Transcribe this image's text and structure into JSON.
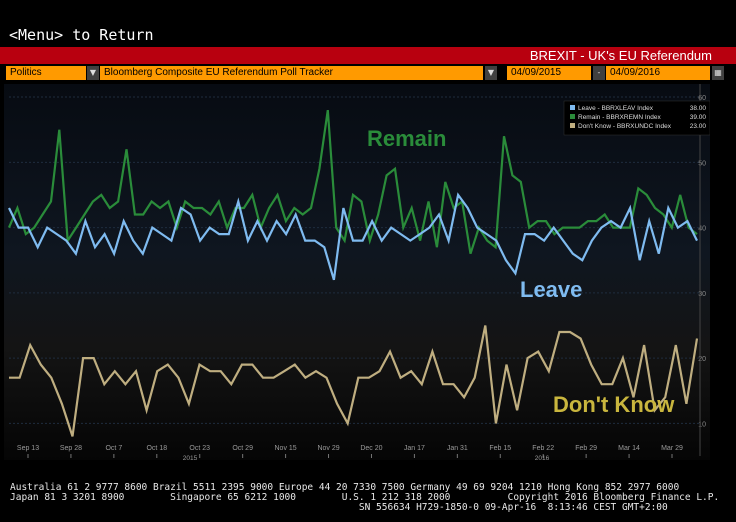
{
  "nav": {
    "back_text": "<Menu> to Return"
  },
  "window": {
    "title": "BREXIT - UK's EU Referendum"
  },
  "toolbar": {
    "category": "Politics",
    "tracker": "Bloomberg Composite EU Referendum Poll Tracker",
    "start_date": "04/09/2015",
    "end_date": "04/09/2016"
  },
  "labels": {
    "remain": "Remain",
    "leave": "Leave",
    "dont_know": "Don't Know"
  },
  "colors": {
    "remain": "#2a8c3a",
    "leave": "#7fbbf0",
    "dont_know": "#bfae80",
    "title_bar": "#b8000f",
    "field": "#ff9a00"
  },
  "chart_data": {
    "type": "line",
    "ylim": [
      5,
      62
    ],
    "y_ticks": [
      10,
      20,
      30,
      40,
      50,
      60
    ],
    "x_ticks": [
      "Sep 13",
      "Sep 28",
      "Oct 7",
      "Oct 18",
      "Oct 23",
      "Oct 29",
      "Nov 15",
      "Nov 29",
      "Dec 20",
      "Jan 17",
      "Jan 31",
      "Feb 15",
      "Feb 22",
      "Feb 29",
      "Mar 14",
      "Mar 29"
    ],
    "x_year_labels": [
      "2015",
      "2016"
    ],
    "legend": {
      "placement": "top-right",
      "entries": [
        {
          "name": "Leave - BBRXLEAV Index",
          "value": "38.00"
        },
        {
          "name": "Remain - BBRXREMN Index",
          "value": "39.00"
        },
        {
          "name": "Don't Know - BBRXUNDC Index",
          "value": "23.00"
        }
      ]
    },
    "series": [
      {
        "name": "Remain",
        "values": [
          40,
          43,
          39,
          40,
          42,
          44,
          55,
          38,
          40,
          42,
          44,
          45,
          43,
          44,
          52,
          42,
          42,
          44,
          43,
          44,
          40,
          44,
          43,
          43,
          42,
          44,
          40,
          43,
          43,
          45,
          40,
          43,
          45,
          41,
          43,
          42,
          43,
          49,
          58,
          40,
          38,
          45,
          44,
          38,
          42,
          48,
          49,
          40,
          43,
          38,
          44,
          37,
          47,
          43,
          44,
          36,
          40,
          38,
          37,
          54,
          48,
          47,
          40,
          41,
          41,
          39,
          40,
          40,
          40,
          41,
          41,
          42,
          40,
          40,
          40,
          46,
          45,
          43,
          42,
          40,
          45,
          40,
          39
        ]
      },
      {
        "name": "Leave",
        "values": [
          43,
          40,
          40,
          37,
          40,
          39,
          38,
          36,
          41,
          37,
          39,
          36,
          41,
          38,
          36,
          40,
          39,
          38,
          43,
          42,
          38,
          40,
          39,
          39,
          44,
          38,
          41,
          38,
          41,
          39,
          42,
          38,
          38,
          37,
          32,
          43,
          38,
          38,
          41,
          38,
          40,
          39,
          38,
          39,
          40,
          42,
          38,
          45,
          43,
          40,
          39,
          38,
          35,
          33,
          39,
          39,
          38,
          40,
          38,
          36,
          35,
          38,
          40,
          41,
          40,
          43,
          35,
          41,
          36,
          43,
          40,
          41,
          38
        ]
      },
      {
        "name": "Don't Know",
        "values": [
          17,
          17,
          22,
          19,
          17,
          13,
          8,
          20,
          20,
          16,
          18,
          16,
          18,
          12,
          18,
          19,
          17,
          13,
          19,
          18,
          18,
          16,
          19,
          19,
          17,
          17,
          18,
          19,
          17,
          18,
          17,
          13,
          10,
          17,
          17,
          18,
          21,
          17,
          18,
          16,
          21,
          16,
          16,
          14,
          17,
          25,
          10,
          19,
          12,
          20,
          21,
          18,
          24,
          24,
          23,
          19,
          16,
          16,
          20,
          14,
          22,
          12,
          14,
          22,
          13,
          23
        ]
      }
    ]
  },
  "bottom_info": {
    "line1": "Australia 61 2 9777 8600 Brazil 5511 2395 9000 Europe 44 20 7330 7500 Germany 49 69 9204 1210 Hong Kong 852 2977 6000",
    "line2": "Japan 81 3 3201 8900        Singapore 65 6212 1000        U.S. 1 212 318 2000          Copyright 2016 Bloomberg Finance L.P.",
    "line3": "                                                             SN 556634 H729-1850-0 09-Apr-16  8:13:46 CEST GMT+2:00"
  }
}
